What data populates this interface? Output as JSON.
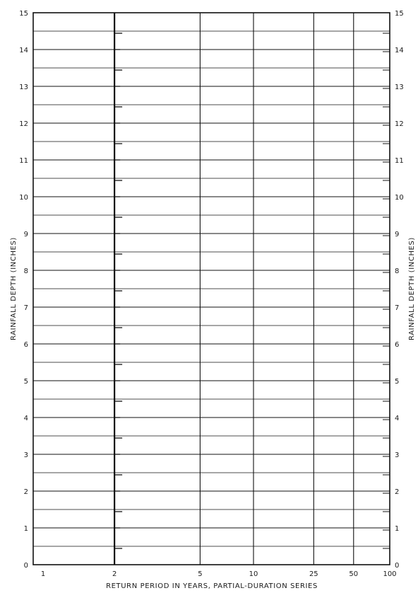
{
  "chart_data": {
    "type": "line",
    "title": "",
    "xlabel": "RETURN PERIOD IN YEARS, PARTIAL-DURATION SERIES",
    "ylabel": "RAINFALL DEPTH (INCHES)",
    "ylabel_right": "RAINFALL DEPTH (INCHES)",
    "x_scale": "probability",
    "x_ticks": [
      1,
      2,
      5,
      10,
      25,
      50,
      100
    ],
    "x_tick_labels": [
      "1",
      "2",
      "5",
      "10",
      "25",
      "50",
      "100"
    ],
    "ylim": [
      0,
      15
    ],
    "y_ticks": [
      0,
      1,
      2,
      3,
      4,
      5,
      6,
      7,
      8,
      9,
      10,
      11,
      12,
      13,
      14,
      15
    ],
    "y_tick_labels": [
      "0",
      "1",
      "2",
      "3",
      "4",
      "5",
      "6",
      "7",
      "8",
      "9",
      "10",
      "11",
      "12",
      "13",
      "14",
      "15"
    ],
    "y_minor_step": 0.5,
    "grid": true,
    "series": []
  }
}
